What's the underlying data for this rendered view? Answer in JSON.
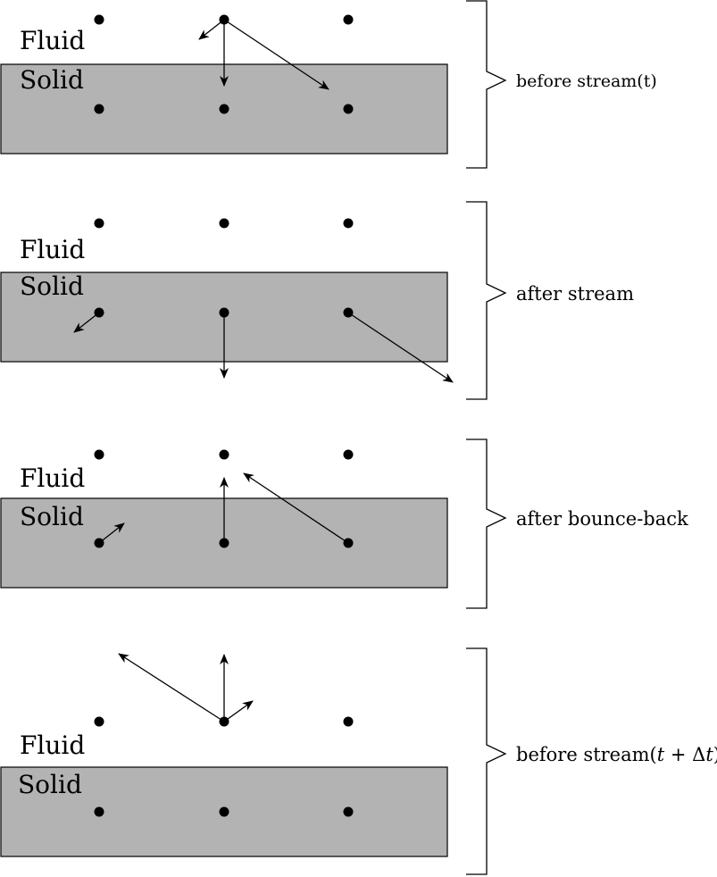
{
  "labels": {
    "fluid": "Fluid",
    "solid": "Solid"
  },
  "stages": [
    {
      "label": "before stream(t)"
    },
    {
      "label": "after stream"
    },
    {
      "label": "after bounce-back"
    },
    {
      "label_prefix": "before stream(",
      "label_var1": "t",
      "label_plus": " + ",
      "label_delta": "Δ",
      "label_var2": "t",
      "label_suffix": ")"
    }
  ],
  "colors": {
    "solid_fill": "#b3b3b3",
    "ink": "#000000"
  }
}
